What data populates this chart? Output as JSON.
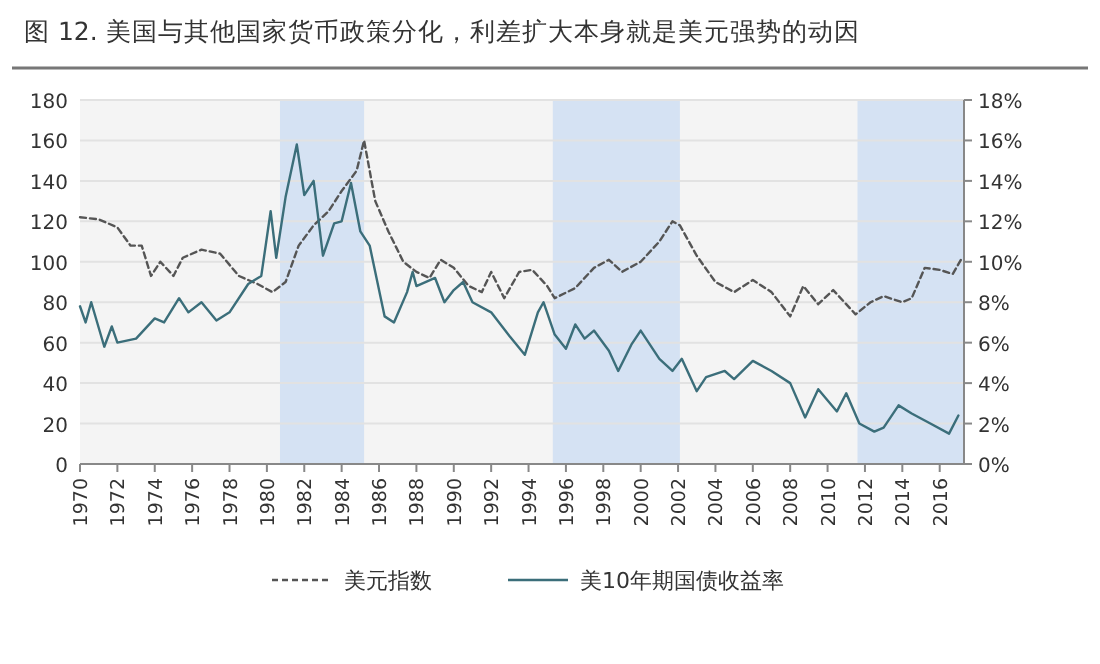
{
  "chart_data": {
    "type": "line",
    "title": "图 12. 美国与其他国家货币政策分化，利差扩大本身就是美元强势的动因",
    "xlim": [
      1970,
      2017.3
    ],
    "xticks": [
      1970,
      1972,
      1974,
      1976,
      1978,
      1980,
      1982,
      1984,
      1986,
      1988,
      1990,
      1992,
      1994,
      1996,
      1998,
      2000,
      2002,
      2004,
      2006,
      2008,
      2010,
      2012,
      2014,
      2016
    ],
    "ylim": [
      0,
      180
    ],
    "yticks": [
      0,
      20,
      40,
      60,
      80,
      100,
      120,
      140,
      160,
      180
    ],
    "y2lim": [
      0,
      18
    ],
    "y2ticks": [
      {
        "value": 0,
        "label": "0%"
      },
      {
        "value": 2,
        "label": "2%"
      },
      {
        "value": 4,
        "label": "4%"
      },
      {
        "value": 6,
        "label": "6%"
      },
      {
        "value": 8,
        "label": "8%"
      },
      {
        "value": 10,
        "label": "10%"
      },
      {
        "value": 12,
        "label": "12%"
      },
      {
        "value": 14,
        "label": "14%"
      },
      {
        "value": 16,
        "label": "16%"
      },
      {
        "value": 18,
        "label": "18%"
      }
    ],
    "grid": "y",
    "legend": "bottom",
    "bands": [
      {
        "axis": "x",
        "from": 1980.7,
        "to": 1985.2,
        "color": "#d5e2f3"
      },
      {
        "axis": "x",
        "from": 1995.3,
        "to": 2002.1,
        "color": "#d5e2f3"
      },
      {
        "axis": "x",
        "from": 2011.6,
        "to": 2017.3,
        "color": "#d5e2f3"
      }
    ],
    "series": [
      {
        "name": "美元指数",
        "color": "#555555",
        "line_style": "dashed",
        "x": [
          1970,
          1971,
          1972,
          1972.7,
          1973.3,
          1973.8,
          1974.3,
          1975,
          1975.5,
          1976.5,
          1977.5,
          1978.5,
          1979.5,
          1980.3,
          1981,
          1981.7,
          1982.5,
          1983.3,
          1984,
          1984.8,
          1985.2,
          1985.8,
          1986.5,
          1987.3,
          1988,
          1988.7,
          1989.3,
          1990,
          1990.8,
          1991.5,
          1992,
          1992.7,
          1993.5,
          1994.2,
          1995,
          1995.4,
          1996.5,
          1997.5,
          1998.3,
          1999,
          2000,
          2001,
          2001.7,
          2002.1,
          2003,
          2004,
          2005,
          2006,
          2007,
          2008,
          2008.7,
          2009.5,
          2010.3,
          2011.5,
          2012.3,
          2013,
          2014,
          2014.5,
          2015.2,
          2016,
          2016.7,
          2017.2
        ],
        "values": [
          122,
          121,
          117,
          108,
          108,
          93,
          100,
          93,
          102,
          106,
          104,
          93,
          89,
          85,
          90,
          108,
          118,
          125,
          135,
          145,
          160,
          130,
          115,
          100,
          95,
          92,
          101,
          97,
          88,
          85,
          95,
          82,
          95,
          96,
          88,
          82,
          87,
          97,
          101,
          95,
          100,
          110,
          120,
          118,
          103,
          90,
          85,
          91,
          85,
          73,
          88,
          79,
          86,
          74,
          80,
          83,
          80,
          82,
          97,
          96,
          94,
          102
        ]
      },
      {
        "name": "美10年期国债收益率",
        "color": "#3b6e7a",
        "line_style": "solid",
        "axis": "y2",
        "x": [
          1970,
          1970.3,
          1970.6,
          1971.3,
          1971.7,
          1972,
          1973,
          1974,
          1974.5,
          1975.3,
          1975.8,
          1976.5,
          1977.3,
          1978,
          1979,
          1979.7,
          1980.2,
          1980.5,
          1981,
          1981.6,
          1982,
          1982.5,
          1983,
          1983.6,
          1984,
          1984.5,
          1985,
          1985.5,
          1986.3,
          1986.8,
          1987.5,
          1987.8,
          1988,
          1989,
          1989.5,
          1990,
          1990.5,
          1991,
          1992,
          1993,
          1993.8,
          1994.5,
          1994.8,
          1995.4,
          1996,
          1996.5,
          1997,
          1997.5,
          1998.3,
          1998.8,
          1999.5,
          2000,
          2001,
          2001.7,
          2002.2,
          2003,
          2003.5,
          2004.5,
          2005,
          2006,
          2007,
          2008,
          2008.8,
          2009.5,
          2010.5,
          2011,
          2011.7,
          2012.5,
          2013,
          2013.8,
          2014.5,
          2015.5,
          2016.5,
          2017
        ],
        "values": [
          7.8,
          7.0,
          8.0,
          5.8,
          6.8,
          6.0,
          6.2,
          7.2,
          7.0,
          8.2,
          7.5,
          8.0,
          7.1,
          7.5,
          8.9,
          9.3,
          12.5,
          10.2,
          13.2,
          15.8,
          13.3,
          14.0,
          10.3,
          11.9,
          12.0,
          13.9,
          11.5,
          10.8,
          7.3,
          7.0,
          8.5,
          9.5,
          8.8,
          9.2,
          8.0,
          8.6,
          9.0,
          8.0,
          7.5,
          6.3,
          5.4,
          7.5,
          8.0,
          6.4,
          5.7,
          6.9,
          6.2,
          6.6,
          5.6,
          4.6,
          5.9,
          6.6,
          5.2,
          4.6,
          5.2,
          3.6,
          4.3,
          4.6,
          4.2,
          5.1,
          4.6,
          4.0,
          2.3,
          3.7,
          2.6,
          3.5,
          2.0,
          1.6,
          1.8,
          2.9,
          2.5,
          2.0,
          1.5,
          2.4
        ]
      }
    ]
  }
}
